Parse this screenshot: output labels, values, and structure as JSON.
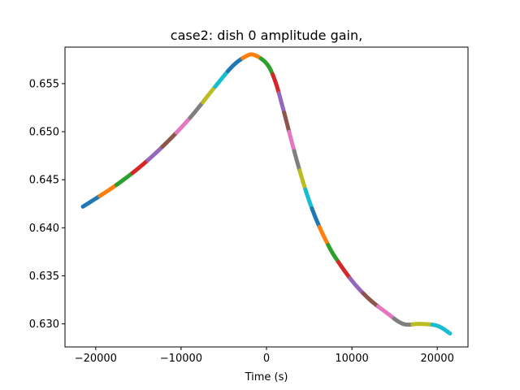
{
  "chart_data": {
    "type": "line",
    "title": "case2: dish 0 amplitude gain,",
    "xlabel": "Time (s)",
    "ylabel": "",
    "xlim": [
      -23600,
      23600
    ],
    "ylim": [
      0.6276,
      0.6588
    ],
    "xticks": [
      -20000,
      -10000,
      0,
      10000,
      20000
    ],
    "xtick_labels": [
      "−20000",
      "−10000",
      "0",
      "10000",
      "20000"
    ],
    "yticks": [
      0.63,
      0.635,
      0.64,
      0.645,
      0.65,
      0.655
    ],
    "ytick_labels": [
      "0.630",
      "0.635",
      "0.640",
      "0.645",
      "0.650",
      "0.655"
    ],
    "grid": false,
    "legend": "none",
    "curve_points": [
      {
        "x": -21500,
        "y": 0.6422
      },
      {
        "x": -18000,
        "y": 0.6442
      },
      {
        "x": -15000,
        "y": 0.6462
      },
      {
        "x": -12000,
        "y": 0.6486
      },
      {
        "x": -9000,
        "y": 0.6514
      },
      {
        "x": -6000,
        "y": 0.6547
      },
      {
        "x": -4000,
        "y": 0.6568
      },
      {
        "x": -2500,
        "y": 0.6578
      },
      {
        "x": -1500,
        "y": 0.658
      },
      {
        "x": 0,
        "y": 0.6571
      },
      {
        "x": 1000,
        "y": 0.6553
      },
      {
        "x": 2000,
        "y": 0.6522
      },
      {
        "x": 3000,
        "y": 0.6488
      },
      {
        "x": 4000,
        "y": 0.6456
      },
      {
        "x": 5000,
        "y": 0.6428
      },
      {
        "x": 6000,
        "y": 0.6405
      },
      {
        "x": 7000,
        "y": 0.6386
      },
      {
        "x": 8000,
        "y": 0.637
      },
      {
        "x": 10000,
        "y": 0.6345
      },
      {
        "x": 12000,
        "y": 0.6326
      },
      {
        "x": 14000,
        "y": 0.6312
      },
      {
        "x": 16000,
        "y": 0.63
      },
      {
        "x": 18000,
        "y": 0.63
      },
      {
        "x": 20000,
        "y": 0.6298
      },
      {
        "x": 21500,
        "y": 0.629
      }
    ],
    "segment_colors": [
      "#1f77b4",
      "#ff7f0e",
      "#2ca02c",
      "#d62728",
      "#9467bd",
      "#8c564b",
      "#e377c2",
      "#7f7f7f",
      "#bcbd22",
      "#17becf"
    ]
  }
}
